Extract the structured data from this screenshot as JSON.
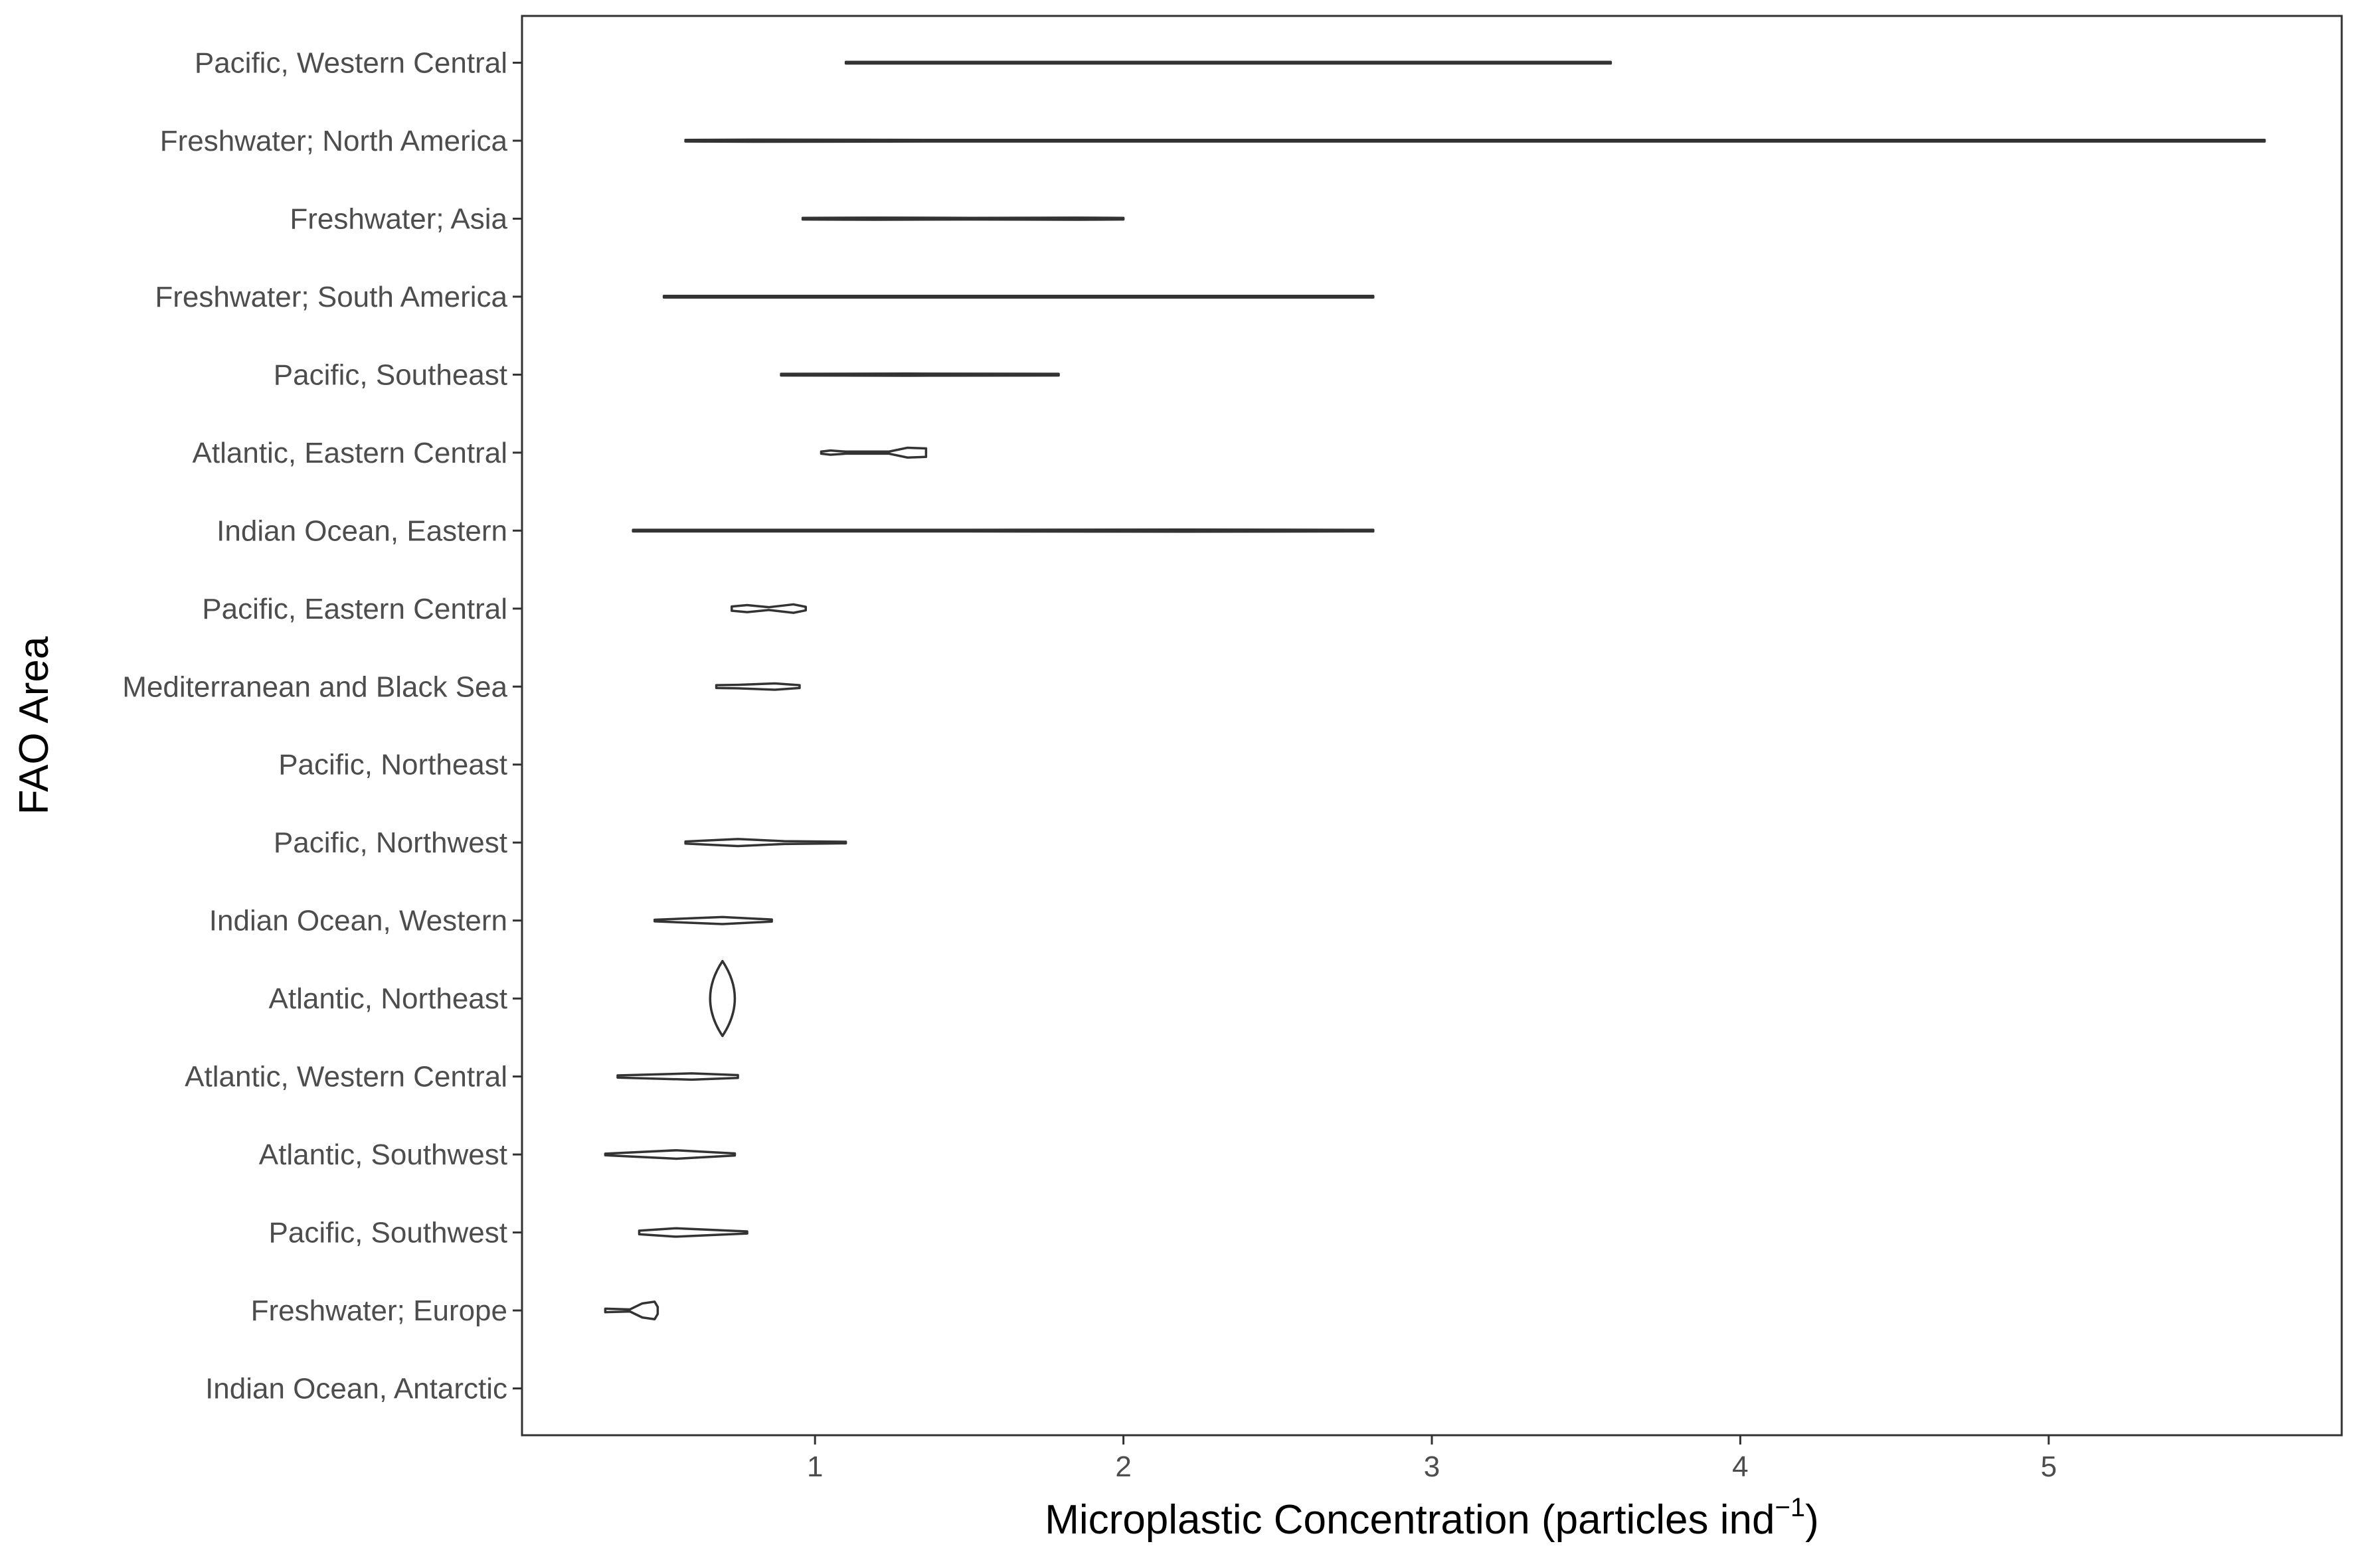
{
  "chart_data": {
    "type": "violin",
    "orientation": "horizontal",
    "xlabel": "Microplastic Concentration (particles  ind",
    "xlabel_sup": "−1",
    "xlabel_close": ")",
    "ylabel": "FAO Area",
    "xlim": [
      0.05,
      5.95
    ],
    "x_ticks": [
      "1",
      "2",
      "3",
      "4",
      "5"
    ],
    "grid": false,
    "categories": [
      "Pacific, Western Central",
      "Freshwater; North America",
      "Freshwater; Asia",
      "Freshwater; South America",
      "Pacific, Southeast",
      "Atlantic, Eastern Central",
      "Indian Ocean, Eastern",
      "Pacific, Eastern Central",
      "Mediterranean and Black Sea",
      "Pacific, Northeast",
      "Pacific, Northwest",
      "Indian Ocean, Western",
      "Atlantic, Northeast",
      "Atlantic, Western Central",
      "Atlantic, Southwest",
      "Pacific, Southwest",
      "Freshwater; Europe",
      "Indian Ocean, Antarctic"
    ],
    "violins": [
      {
        "category": "Pacific, Western Central",
        "profile": [
          [
            1.1,
            0.02
          ],
          [
            2.4,
            0.02
          ],
          [
            3.58,
            0.01
          ]
        ]
      },
      {
        "category": "Freshwater; North America",
        "profile": [
          [
            0.58,
            0.01
          ],
          [
            0.8,
            0.03
          ],
          [
            1.4,
            0.02
          ],
          [
            3.0,
            0.01
          ],
          [
            5.7,
            0.01
          ]
        ]
      },
      {
        "category": "Freshwater; Asia",
        "profile": [
          [
            0.96,
            0.01
          ],
          [
            1.2,
            0.03
          ],
          [
            1.5,
            0.02
          ],
          [
            1.85,
            0.03
          ],
          [
            2.0,
            0.02
          ]
        ]
      },
      {
        "category": "Freshwater; South America",
        "profile": [
          [
            0.51,
            0.01
          ],
          [
            1.5,
            0.02
          ],
          [
            2.6,
            0.02
          ],
          [
            2.81,
            0.01
          ]
        ]
      },
      {
        "category": "Pacific, Southeast",
        "profile": [
          [
            0.89,
            0.01
          ],
          [
            1.3,
            0.03
          ],
          [
            1.79,
            0.02
          ]
        ]
      },
      {
        "category": "Atlantic, Eastern Central",
        "profile": [
          [
            1.02,
            0.03
          ],
          [
            1.05,
            0.06
          ],
          [
            1.1,
            0.03
          ],
          [
            1.24,
            0.03
          ],
          [
            1.3,
            0.14
          ],
          [
            1.36,
            0.12
          ],
          [
            1.36,
            0.02
          ]
        ]
      },
      {
        "category": "Indian Ocean, Eastern",
        "profile": [
          [
            0.41,
            0.01
          ],
          [
            1.5,
            0.02
          ],
          [
            2.2,
            0.03
          ],
          [
            2.8,
            0.02
          ],
          [
            2.81,
            0.01
          ]
        ]
      },
      {
        "category": "Pacific, Eastern Central",
        "profile": [
          [
            0.73,
            0.06
          ],
          [
            0.78,
            0.1
          ],
          [
            0.85,
            0.04
          ],
          [
            0.93,
            0.12
          ],
          [
            0.97,
            0.05
          ]
        ]
      },
      {
        "category": "Mediterranean and Black Sea",
        "profile": [
          [
            0.68,
            0.04
          ],
          [
            0.75,
            0.05
          ],
          [
            0.87,
            0.09
          ],
          [
            0.95,
            0.04
          ]
        ]
      },
      {
        "category": "Pacific, Northeast",
        "profile": []
      },
      {
        "category": "Pacific, Northwest",
        "profile": [
          [
            0.58,
            0.03
          ],
          [
            0.75,
            0.1
          ],
          [
            0.9,
            0.04
          ],
          [
            1.1,
            0.02
          ]
        ]
      },
      {
        "category": "Indian Ocean, Western",
        "profile": [
          [
            0.48,
            0.02
          ],
          [
            0.7,
            0.1
          ],
          [
            0.86,
            0.03
          ]
        ]
      },
      {
        "category": "Atlantic, Northeast",
        "profile": [
          [
            0.7,
            0.0
          ],
          [
            0.7,
            0.47
          ],
          [
            0.7,
            0.0
          ]
        ],
        "vertical_spread": [
          0.67,
          0.73
        ],
        "width": 0.16
      },
      {
        "category": "Atlantic, Western Central",
        "profile": [
          [
            0.36,
            0.03
          ],
          [
            0.6,
            0.09
          ],
          [
            0.75,
            0.04
          ]
        ]
      },
      {
        "category": "Atlantic, Southwest",
        "profile": [
          [
            0.32,
            0.02
          ],
          [
            0.55,
            0.12
          ],
          [
            0.74,
            0.03
          ]
        ]
      },
      {
        "category": "Pacific, Southwest",
        "profile": [
          [
            0.43,
            0.05
          ],
          [
            0.55,
            0.12
          ],
          [
            0.7,
            0.06
          ],
          [
            0.78,
            0.03
          ]
        ]
      },
      {
        "category": "Freshwater; Europe",
        "profile": [
          [
            0.32,
            0.05
          ],
          [
            0.4,
            0.03
          ],
          [
            0.44,
            0.2
          ],
          [
            0.48,
            0.25
          ],
          [
            0.49,
            0.1
          ]
        ]
      },
      {
        "category": "Indian Ocean, Antarctic",
        "profile": []
      }
    ]
  }
}
